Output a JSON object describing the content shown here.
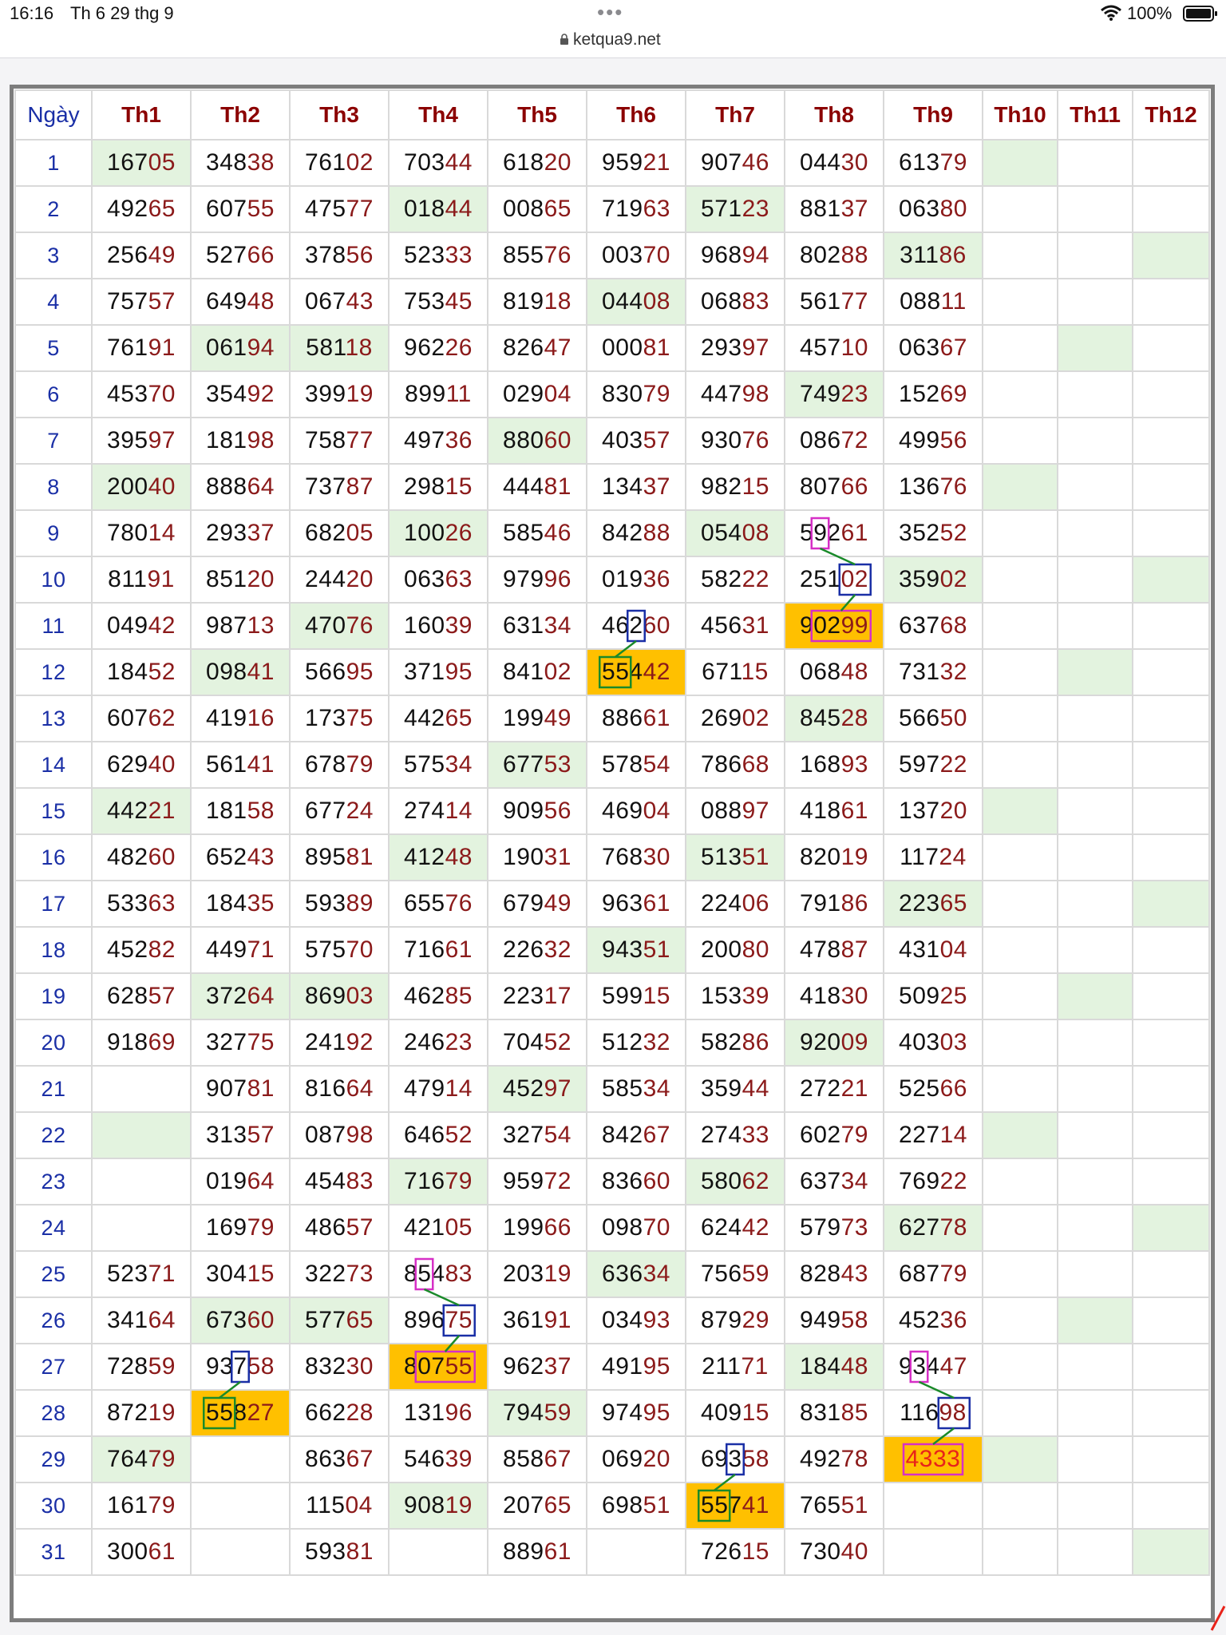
{
  "status_bar": {
    "time": "16:16",
    "date": "Th 6 29 thg 9",
    "dots": "•••",
    "url": "ketqua9.net",
    "battery": "100%"
  },
  "table": {
    "headers": [
      "Ngày",
      "Th1",
      "Th2",
      "Th3",
      "Th4",
      "Th5",
      "Th6",
      "Th7",
      "Th8",
      "Th9",
      "Th10",
      "Th11",
      "Th12"
    ],
    "rows": [
      [
        "1",
        "16705",
        "34838",
        "76102",
        "70344",
        "61820",
        "95921",
        "90746",
        "04430",
        "61379",
        "",
        "",
        ""
      ],
      [
        "2",
        "49265",
        "60755",
        "47577",
        "01844",
        "00865",
        "71963",
        "57123",
        "88137",
        "06380",
        "",
        "",
        ""
      ],
      [
        "3",
        "25649",
        "52766",
        "37856",
        "52333",
        "85576",
        "00370",
        "96894",
        "80288",
        "31186",
        "",
        "",
        ""
      ],
      [
        "4",
        "75757",
        "64948",
        "06743",
        "75345",
        "81918",
        "04408",
        "06883",
        "56177",
        "08811",
        "",
        "",
        ""
      ],
      [
        "5",
        "76191",
        "06194",
        "58118",
        "96226",
        "82647",
        "00081",
        "29397",
        "45710",
        "06367",
        "",
        "",
        ""
      ],
      [
        "6",
        "45370",
        "35492",
        "39919",
        "89911",
        "02904",
        "83079",
        "44798",
        "74923",
        "15269",
        "",
        "",
        ""
      ],
      [
        "7",
        "39597",
        "18198",
        "75877",
        "49736",
        "88060",
        "40357",
        "93076",
        "08672",
        "49956",
        "",
        "",
        ""
      ],
      [
        "8",
        "20040",
        "88864",
        "73787",
        "29815",
        "44481",
        "13437",
        "98215",
        "80766",
        "13676",
        "",
        "",
        ""
      ],
      [
        "9",
        "78014",
        "29337",
        "68205",
        "10026",
        "58546",
        "84288",
        "05408",
        "59261",
        "35252",
        "",
        "",
        ""
      ],
      [
        "10",
        "81191",
        "85120",
        "24420",
        "06363",
        "97996",
        "01936",
        "58222",
        "25102",
        "35902",
        "",
        "",
        ""
      ],
      [
        "11",
        "04942",
        "98713",
        "47076",
        "16039",
        "63134",
        "46260",
        "45631",
        "90299",
        "63768",
        "",
        "",
        ""
      ],
      [
        "12",
        "18452",
        "09841",
        "56695",
        "37195",
        "84102",
        "55442",
        "67115",
        "06848",
        "73132",
        "",
        "",
        ""
      ],
      [
        "13",
        "60762",
        "41916",
        "17375",
        "44265",
        "19949",
        "88661",
        "26902",
        "84528",
        "56650",
        "",
        "",
        ""
      ],
      [
        "14",
        "62940",
        "56141",
        "67879",
        "57534",
        "67753",
        "57854",
        "78668",
        "16893",
        "59722",
        "",
        "",
        ""
      ],
      [
        "15",
        "44221",
        "18158",
        "67724",
        "27414",
        "90956",
        "46904",
        "08897",
        "41861",
        "13720",
        "",
        "",
        ""
      ],
      [
        "16",
        "48260",
        "65243",
        "89581",
        "41248",
        "19031",
        "76830",
        "51351",
        "82019",
        "11724",
        "",
        "",
        ""
      ],
      [
        "17",
        "53363",
        "18435",
        "59389",
        "65576",
        "67949",
        "96361",
        "22406",
        "79186",
        "22365",
        "",
        "",
        ""
      ],
      [
        "18",
        "45282",
        "44971",
        "57570",
        "71661",
        "22632",
        "94351",
        "20080",
        "47887",
        "43104",
        "",
        "",
        ""
      ],
      [
        "19",
        "62857",
        "37264",
        "86903",
        "46285",
        "22317",
        "59915",
        "15339",
        "41830",
        "50925",
        "",
        "",
        ""
      ],
      [
        "20",
        "91869",
        "32775",
        "24192",
        "24623",
        "70452",
        "51232",
        "58286",
        "92009",
        "40303",
        "",
        "",
        ""
      ],
      [
        "21",
        "",
        "90781",
        "81664",
        "47914",
        "45297",
        "58534",
        "35944",
        "27221",
        "52566",
        "",
        "",
        ""
      ],
      [
        "22",
        "",
        "31357",
        "08798",
        "64652",
        "32754",
        "84267",
        "27433",
        "60279",
        "22714",
        "",
        "",
        ""
      ],
      [
        "23",
        "",
        "01964",
        "45483",
        "71679",
        "95972",
        "83660",
        "58062",
        "63734",
        "76922",
        "",
        "",
        ""
      ],
      [
        "24",
        "",
        "16979",
        "48657",
        "42105",
        "19966",
        "09870",
        "62442",
        "57973",
        "62778",
        "",
        "",
        ""
      ],
      [
        "25",
        "52371",
        "30415",
        "32273",
        "85483",
        "20319",
        "63634",
        "75659",
        "82843",
        "68779",
        "",
        "",
        ""
      ],
      [
        "26",
        "34164",
        "67360",
        "57765",
        "89675",
        "36191",
        "03493",
        "87929",
        "94958",
        "45236",
        "",
        "",
        ""
      ],
      [
        "27",
        "72859",
        "93758",
        "83230",
        "80755",
        "96237",
        "49195",
        "21171",
        "18448",
        "93447",
        "",
        "",
        ""
      ],
      [
        "28",
        "87219",
        "55827",
        "66228",
        "13196",
        "79459",
        "97495",
        "40915",
        "83185",
        "11698",
        "",
        "",
        ""
      ],
      [
        "29",
        "76479",
        "",
        "86367",
        "54639",
        "85867",
        "06920",
        "69358",
        "49278",
        "4333",
        "",
        "",
        ""
      ],
      [
        "30",
        "16179",
        "",
        "11504",
        "90819",
        "20765",
        "69851",
        "55741",
        "76551",
        "",
        "",
        "",
        ""
      ],
      [
        "31",
        "30061",
        "",
        "59381",
        "",
        "88961",
        "",
        "72615",
        "73040",
        "",
        "",
        "",
        ""
      ]
    ]
  },
  "colors": {
    "green_cell": "#e3f3df",
    "orange_cell": "#ffc000",
    "header_red": "#8b0000",
    "day_blue": "#1a2fa6",
    "box_blue": "#1a2fa6",
    "box_magenta": "#d62fc6",
    "box_green": "#1a8a2a",
    "line_green": "#1a8a2a"
  },
  "icons": [
    "lock-icon",
    "wifi-icon",
    "battery-icon",
    "arrow-icon"
  ]
}
